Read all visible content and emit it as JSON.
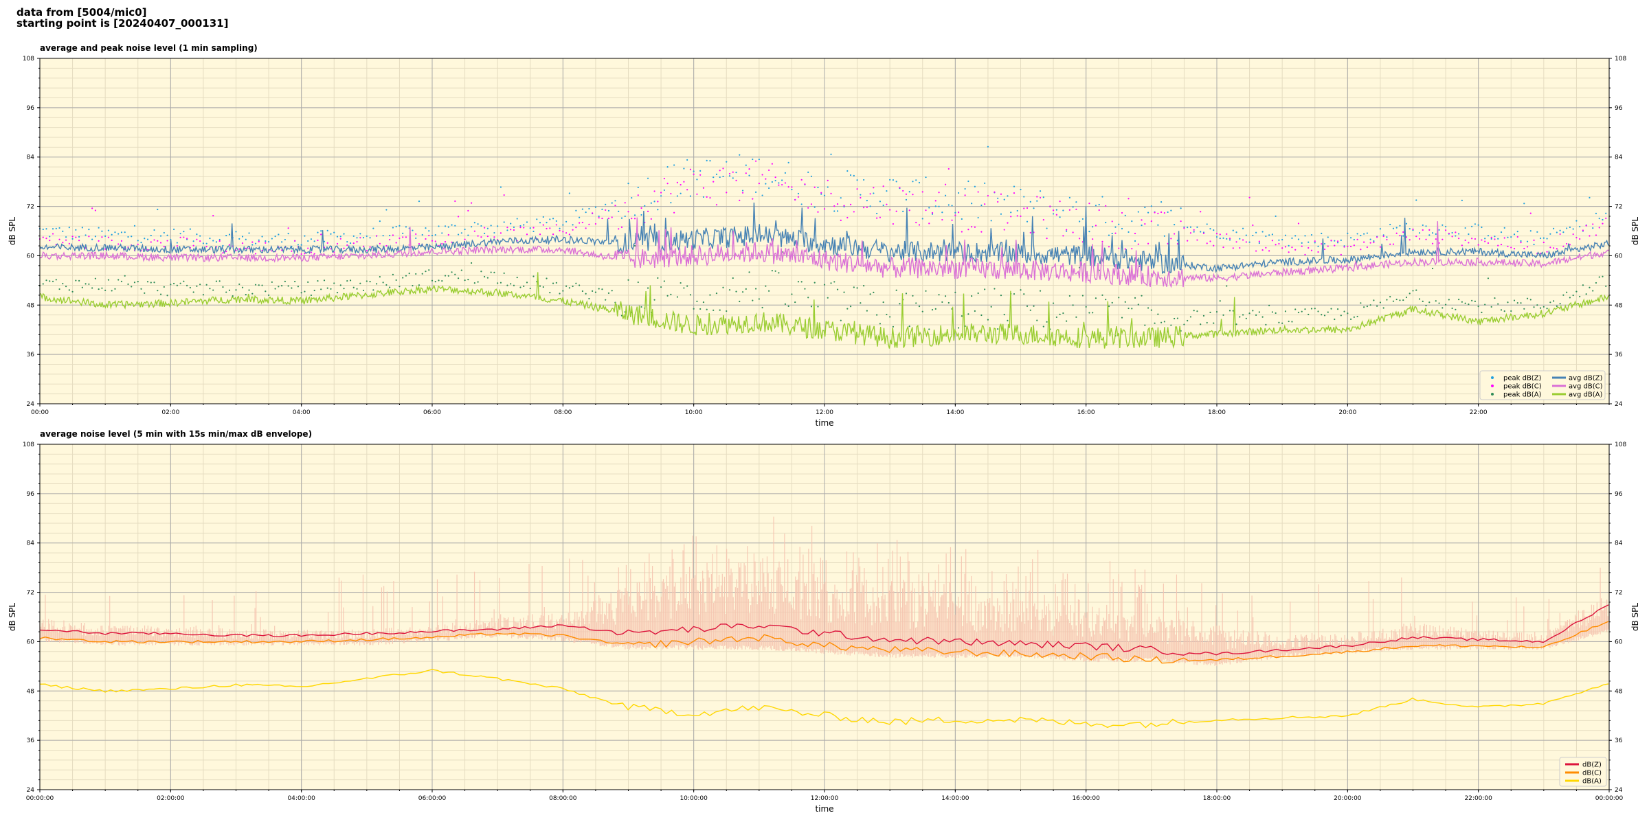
{
  "header": {
    "line1": "data from [5004/mic0]",
    "line2": "starting point is [20240407_000131]"
  },
  "chart_data": [
    {
      "type": "line",
      "title": "average and peak noise level (1 min sampling)",
      "xlabel": "time",
      "ylabel": "dB SPL",
      "ylim": [
        24,
        108
      ],
      "yticks": [
        24,
        36,
        48,
        60,
        72,
        84,
        96,
        108
      ],
      "xlim_hours": [
        0,
        24
      ],
      "xticks": [
        "00:00",
        "02:00",
        "04:00",
        "06:00",
        "08:00",
        "10:00",
        "12:00",
        "14:00",
        "16:00",
        "18:00",
        "20:00",
        "22:00"
      ],
      "grid": true,
      "legend_position": "bottom-right",
      "colors": {
        "background": "#fff8dc",
        "grid_major": "#aaaaaa",
        "grid_minor": "#e5dcc0"
      },
      "x_hours": [
        0,
        1,
        2,
        3,
        4,
        5,
        6,
        7,
        8,
        9,
        10,
        11,
        12,
        13,
        14,
        15,
        16,
        17,
        18,
        19,
        20,
        21,
        22,
        23,
        24
      ],
      "series": [
        {
          "name": "peak dB(Z)",
          "kind": "dots",
          "color": "#1f9fdf",
          "values": [
            66,
            65,
            65,
            64,
            64,
            65,
            66,
            67,
            68,
            74,
            79,
            80,
            76,
            75,
            73,
            72,
            70,
            68,
            66,
            64,
            64,
            67,
            66,
            64,
            70
          ]
        },
        {
          "name": "peak dB(C)",
          "kind": "dots",
          "color": "#ff00ff",
          "values": [
            64,
            63,
            63,
            62,
            62,
            63,
            64,
            65,
            66,
            72,
            77,
            78,
            74,
            73,
            71,
            70,
            68,
            66,
            64,
            62,
            62,
            65,
            64,
            62,
            68
          ]
        },
        {
          "name": "peak dB(A)",
          "kind": "dots",
          "color": "#2e8b57",
          "values": [
            53,
            53,
            52,
            52,
            52,
            53,
            55,
            55,
            52,
            50,
            50,
            52,
            49,
            47,
            47,
            47,
            46,
            45,
            45,
            45,
            46,
            50,
            48,
            48,
            54
          ]
        },
        {
          "name": "avg dB(Z)",
          "kind": "line",
          "color": "#4682b4",
          "values": [
            62,
            62,
            61.5,
            61.5,
            61.5,
            61.5,
            62,
            63.5,
            64,
            63,
            64,
            65,
            63,
            61,
            61,
            60.5,
            60,
            58.5,
            57,
            58.5,
            59,
            61,
            61,
            60,
            63
          ]
        },
        {
          "name": "avg dB(C)",
          "kind": "line",
          "color": "#da70d6",
          "values": [
            60,
            60,
            59.5,
            59.5,
            59.5,
            60,
            61,
            61.5,
            61.5,
            59,
            60,
            61,
            59,
            57,
            57,
            56.5,
            56,
            55,
            54.5,
            56,
            57,
            58.5,
            58.5,
            58,
            61
          ]
        },
        {
          "name": "avg dB(A)",
          "kind": "line",
          "color": "#9acd32",
          "values": [
            50,
            48,
            48.5,
            49.5,
            49,
            50.5,
            52,
            51,
            49,
            46,
            43,
            44,
            42,
            40,
            41,
            41,
            40,
            40,
            41,
            42,
            42,
            47,
            44,
            46,
            50
          ]
        }
      ]
    },
    {
      "type": "line",
      "title": "average noise level (5 min with 15s min/max dB envelope)",
      "xlabel": "time",
      "ylabel": "dB SPL",
      "ylim": [
        24,
        108
      ],
      "yticks": [
        24,
        36,
        48,
        60,
        72,
        84,
        96,
        108
      ],
      "xlim_hours": [
        0,
        24
      ],
      "xticks": [
        "00:00:00",
        "02:00:00",
        "04:00:00",
        "06:00:00",
        "08:00:00",
        "10:00:00",
        "12:00:00",
        "14:00:00",
        "16:00:00",
        "18:00:00",
        "20:00:00",
        "22:00:00",
        "00:00:00"
      ],
      "grid": true,
      "legend_position": "bottom-right",
      "colors": {
        "background": "#fff8dc",
        "grid_major": "#aaaaaa",
        "grid_minor": "#e5dcc0",
        "envelope": "#f6c4b0"
      },
      "x_hours": [
        0,
        1,
        2,
        3,
        4,
        5,
        6,
        7,
        8,
        9,
        10,
        11,
        12,
        13,
        14,
        15,
        16,
        17,
        18,
        19,
        20,
        21,
        22,
        23,
        24
      ],
      "envelope_max": [
        66,
        64,
        64,
        63,
        63,
        63,
        64,
        66,
        67,
        74,
        78,
        80,
        76,
        74,
        72,
        70,
        69,
        67,
        64,
        62,
        62,
        65,
        63,
        62,
        72
      ],
      "envelope_min": [
        60,
        59,
        59,
        59,
        59,
        59,
        60,
        61,
        60,
        58,
        58,
        58,
        57,
        56,
        56,
        56,
        55,
        55,
        54,
        56,
        57,
        58,
        58,
        58,
        62
      ],
      "series": [
        {
          "name": "dB(Z)",
          "color": "#dc143c",
          "values": [
            63,
            62,
            62,
            61.5,
            61.5,
            62,
            62.5,
            63,
            64,
            62,
            63,
            64,
            62,
            60.5,
            60,
            59.5,
            59,
            58,
            57,
            58,
            59,
            61,
            60.5,
            60,
            69
          ]
        },
        {
          "name": "dB(C)",
          "color": "#ff8c00",
          "values": [
            61,
            60,
            60,
            60,
            60,
            60.5,
            61,
            62,
            61.5,
            59,
            60,
            61,
            59,
            58,
            57.5,
            57,
            56.5,
            55.5,
            55.5,
            56.5,
            57.5,
            59,
            59,
            58.5,
            65
          ]
        },
        {
          "name": "dB(A)",
          "color": "#ffd700",
          "values": [
            49.5,
            48,
            48.5,
            49.5,
            49,
            51,
            53,
            51,
            48.5,
            44,
            42.5,
            44,
            42,
            40.5,
            41,
            41,
            40,
            40,
            41,
            41.5,
            42,
            46,
            44,
            45,
            50
          ]
        }
      ]
    }
  ]
}
